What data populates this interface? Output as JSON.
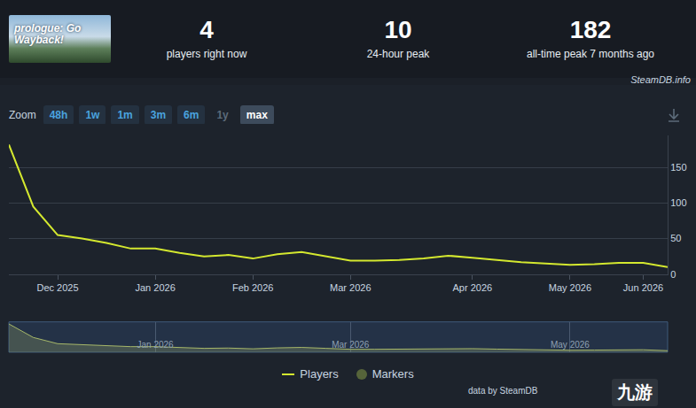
{
  "header": {
    "logo_text": "prologue: Go Wayback!",
    "stats": [
      {
        "value": 4,
        "label": "players right now"
      },
      {
        "value": 10,
        "label": "24-hour peak"
      },
      {
        "value": 182,
        "label": "all-time peak 7 months ago"
      }
    ],
    "site": "SteamDB.info"
  },
  "zoom": {
    "label": "Zoom",
    "options": [
      "48h",
      "1w",
      "1m",
      "3m",
      "6m",
      "1y",
      "max"
    ],
    "selected": "max",
    "disabled": [
      "1y"
    ]
  },
  "chart_data": {
    "type": "line",
    "categories": [
      null,
      null,
      "Dec 2025",
      null,
      null,
      null,
      "Jan 2026",
      null,
      null,
      null,
      "Feb 2026",
      null,
      null,
      null,
      "Mar 2026",
      null,
      null,
      null,
      null,
      "Apr 2026",
      null,
      null,
      null,
      "May 2026",
      null,
      null,
      "Jun 2026",
      null
    ],
    "series": [
      {
        "name": "Players",
        "color": "#d4e82f",
        "values": [
          182,
          95,
          55,
          50,
          44,
          36,
          36,
          30,
          25,
          27,
          22,
          28,
          31,
          25,
          19,
          19,
          20,
          22,
          26,
          23,
          20,
          17,
          15,
          13,
          14,
          16,
          16,
          10
        ]
      }
    ],
    "ylim": [
      0,
      195
    ],
    "yticks": [
      0,
      50,
      100,
      150
    ],
    "grid": true,
    "legend": "bottom"
  },
  "navigator": {
    "labels": [
      "Jan 2026",
      "Mar 2026",
      "May 2026"
    ]
  },
  "legend_extra": [
    {
      "name": "Markers",
      "color": "#56643a"
    }
  ],
  "footer": {
    "credit": "data by SteamDB",
    "watermark": "九游"
  }
}
